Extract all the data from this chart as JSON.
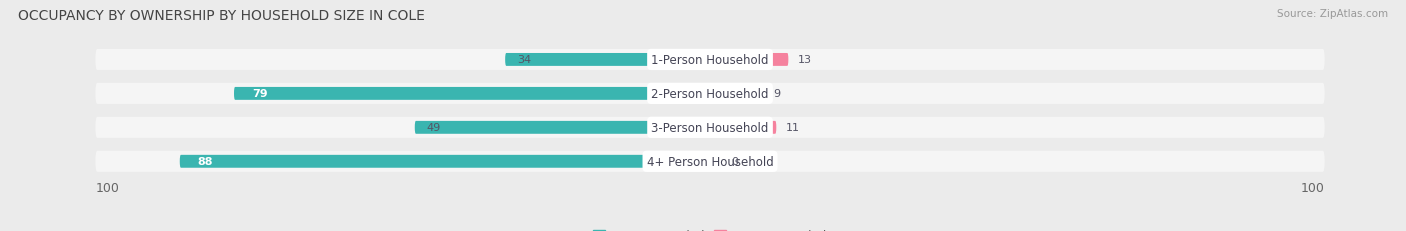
{
  "title": "OCCUPANCY BY OWNERSHIP BY HOUSEHOLD SIZE IN COLE",
  "source": "Source: ZipAtlas.com",
  "categories": [
    "1-Person Household",
    "2-Person Household",
    "3-Person Household",
    "4+ Person Household"
  ],
  "owner_values": [
    34,
    79,
    49,
    88
  ],
  "renter_values": [
    13,
    9,
    11,
    0
  ],
  "owner_color": "#3ab5b0",
  "renter_color": "#f5829e",
  "renter_color_4": "#f7c0d4",
  "axis_max": 100,
  "bg_color": "#ebebeb",
  "bar_bg_color": "#e0e0e0",
  "row_bg_color": "#f5f5f5",
  "title_fontsize": 10,
  "source_fontsize": 7.5,
  "value_fontsize": 8,
  "label_fontsize": 8.5,
  "tick_fontsize": 9,
  "legend_fontsize": 8.5
}
